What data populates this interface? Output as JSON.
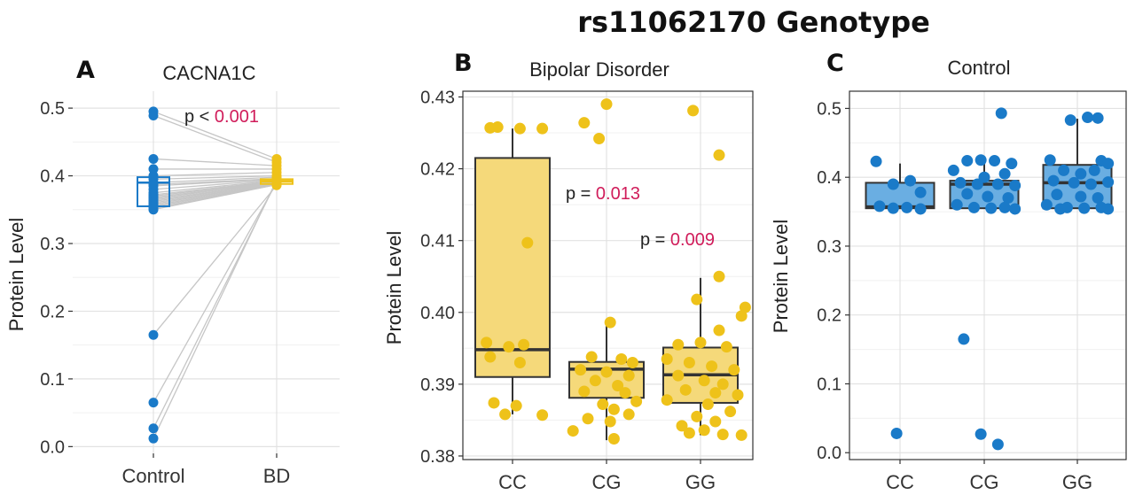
{
  "figure_title": "rs11062170 Genotype",
  "colors": {
    "bd": "#eec21a",
    "bd_fill": "#f5d97a",
    "control": "#1a7ac8",
    "control_fill": "#6aaee2",
    "pvalue": "#d01c5a",
    "pair_line": "#c6c6c6"
  },
  "chart_data": [
    {
      "id": "A",
      "type": "paired-scatter-box",
      "letter": "A",
      "title": "CACNA1C",
      "xlabel": "",
      "ylabel": "Protein Level",
      "categories": [
        "Control",
        "BD"
      ],
      "ylim": [
        -0.01,
        0.525
      ],
      "yticks": [
        0.0,
        0.1,
        0.2,
        0.3,
        0.4,
        0.5
      ],
      "ytick_labels": [
        "0.0",
        "0.1",
        "0.2",
        "0.3",
        "0.4",
        "0.5"
      ],
      "p_prefix": "p < ",
      "p_value": "0.001",
      "series": [
        {
          "name": "Control",
          "box": {
            "q1": 0.355,
            "median": 0.39,
            "q3": 0.398,
            "whisker_low": 0.355,
            "whisker_high": 0.398
          },
          "values": [
            0.495,
            0.489,
            0.425,
            0.41,
            0.4,
            0.395,
            0.39,
            0.387,
            0.385,
            0.38,
            0.375,
            0.372,
            0.37,
            0.368,
            0.366,
            0.364,
            0.362,
            0.36,
            0.358,
            0.356,
            0.354,
            0.352,
            0.35,
            0.165,
            0.065,
            0.027,
            0.012
          ]
        },
        {
          "name": "BD",
          "box": {
            "q1": 0.388,
            "median": 0.392,
            "q3": 0.395,
            "whisker_low": 0.386,
            "whisker_high": 0.397
          },
          "values": [
            0.425,
            0.42,
            0.415,
            0.41,
            0.405,
            0.4,
            0.398,
            0.396,
            0.395,
            0.394,
            0.393,
            0.392,
            0.392,
            0.391,
            0.391,
            0.39,
            0.39,
            0.389,
            0.389,
            0.388,
            0.388,
            0.387,
            0.387,
            0.386,
            0.39,
            0.392,
            0.394
          ]
        }
      ]
    },
    {
      "id": "B",
      "type": "box-jitter",
      "letter": "B",
      "title": "Bipolar Disorder",
      "xlabel": "",
      "ylabel": "Protein Level",
      "categories": [
        "CC",
        "CG",
        "GG"
      ],
      "ylim": [
        0.3795,
        0.4308
      ],
      "yticks": [
        0.38,
        0.39,
        0.4,
        0.41,
        0.42,
        0.43
      ],
      "ytick_labels": [
        "0.38",
        "0.39",
        "0.40",
        "0.41",
        "0.42",
        "0.43"
      ],
      "annotations": [
        {
          "prefix": "p = ",
          "value": "0.013"
        },
        {
          "prefix": "p = ",
          "value": "0.009"
        }
      ],
      "series": [
        {
          "name": "CC",
          "box": {
            "q1": 0.391,
            "median": 0.3948,
            "q3": 0.4215,
            "whisker_low": 0.3858,
            "whisker_high": 0.4256
          },
          "points": [
            [
              -0.3,
              0.4257
            ],
            [
              -0.2,
              0.4258
            ],
            [
              0.1,
              0.4256
            ],
            [
              0.4,
              0.4256
            ],
            [
              0.2,
              0.4097
            ],
            [
              -0.35,
              0.3958
            ],
            [
              -0.05,
              0.3952
            ],
            [
              0.15,
              0.3955
            ],
            [
              -0.3,
              0.3938
            ],
            [
              0.1,
              0.393
            ],
            [
              -0.25,
              0.3874
            ],
            [
              0.05,
              0.387
            ],
            [
              0.4,
              0.3857
            ],
            [
              -0.1,
              0.3858
            ]
          ]
        },
        {
          "name": "CG",
          "box": {
            "q1": 0.3881,
            "median": 0.3921,
            "q3": 0.3931,
            "whisker_low": 0.3822,
            "whisker_high": 0.3983
          },
          "points": [
            [
              0.0,
              0.429
            ],
            [
              -0.3,
              0.4264
            ],
            [
              -0.1,
              0.4242
            ],
            [
              0.05,
              0.3986
            ],
            [
              -0.45,
              0.3835
            ],
            [
              0.1,
              0.3824
            ],
            [
              -0.2,
              0.3938
            ],
            [
              0.2,
              0.3935
            ],
            [
              0.35,
              0.393
            ],
            [
              -0.35,
              0.392
            ],
            [
              0.0,
              0.3917
            ],
            [
              0.3,
              0.3912
            ],
            [
              -0.15,
              0.3905
            ],
            [
              0.15,
              0.3898
            ],
            [
              -0.3,
              0.389
            ],
            [
              0.25,
              0.3888
            ],
            [
              0.4,
              0.3876
            ],
            [
              -0.05,
              0.3872
            ],
            [
              0.1,
              0.3865
            ],
            [
              0.3,
              0.3858
            ],
            [
              -0.25,
              0.3852
            ],
            [
              0.05,
              0.3848
            ]
          ]
        },
        {
          "name": "GG",
          "box": {
            "q1": 0.3874,
            "median": 0.3913,
            "q3": 0.3951,
            "whisker_low": 0.3829,
            "whisker_high": 0.4048
          },
          "points": [
            [
              -0.1,
              0.4281
            ],
            [
              0.25,
              0.4219
            ],
            [
              0.25,
              0.405
            ],
            [
              0.6,
              0.4007
            ],
            [
              -0.05,
              0.4018
            ],
            [
              0.55,
              0.3995
            ],
            [
              0.25,
              0.3975
            ],
            [
              -0.3,
              0.3955
            ],
            [
              0.0,
              0.3958
            ],
            [
              0.35,
              0.3952
            ],
            [
              -0.45,
              0.3935
            ],
            [
              -0.15,
              0.393
            ],
            [
              0.15,
              0.3925
            ],
            [
              0.45,
              0.392
            ],
            [
              -0.3,
              0.3912
            ],
            [
              0.05,
              0.3905
            ],
            [
              0.3,
              0.39
            ],
            [
              -0.2,
              0.3892
            ],
            [
              0.2,
              0.3888
            ],
            [
              0.5,
              0.3885
            ],
            [
              -0.45,
              0.3878
            ],
            [
              0.1,
              0.3872
            ],
            [
              0.4,
              0.3862
            ],
            [
              -0.05,
              0.3855
            ],
            [
              0.2,
              0.3848
            ],
            [
              -0.25,
              0.3842
            ],
            [
              0.05,
              0.3836
            ],
            [
              0.3,
              0.383
            ],
            [
              0.55,
              0.3829
            ],
            [
              -0.15,
              0.3832
            ]
          ]
        }
      ]
    },
    {
      "id": "C",
      "type": "box-jitter",
      "letter": "C",
      "title": "Control",
      "xlabel": "",
      "ylabel": "Protein Level",
      "categories": [
        "CC",
        "CG",
        "GG"
      ],
      "ylim": [
        -0.01,
        0.525
      ],
      "yticks": [
        0.0,
        0.1,
        0.2,
        0.3,
        0.4,
        0.5
      ],
      "ytick_labels": [
        "0.0",
        "0.1",
        "0.2",
        "0.3",
        "0.4",
        "0.5"
      ],
      "series": [
        {
          "name": "CC",
          "box": {
            "q1": 0.355,
            "median": 0.357,
            "q3": 0.392,
            "whisker_low": 0.355,
            "whisker_high": 0.42
          },
          "points": [
            [
              -0.35,
              0.423
            ],
            [
              0.15,
              0.395
            ],
            [
              -0.1,
              0.39
            ],
            [
              0.3,
              0.378
            ],
            [
              -0.3,
              0.358
            ],
            [
              -0.1,
              0.355
            ],
            [
              0.1,
              0.356
            ],
            [
              0.3,
              0.354
            ],
            [
              -0.05,
              0.028
            ]
          ]
        },
        {
          "name": "CG",
          "box": {
            "q1": 0.355,
            "median": 0.39,
            "q3": 0.395,
            "whisker_low": 0.355,
            "whisker_high": 0.42
          },
          "points": [
            [
              0.25,
              0.493
            ],
            [
              -0.25,
              0.424
            ],
            [
              -0.05,
              0.425
            ],
            [
              0.15,
              0.424
            ],
            [
              0.4,
              0.42
            ],
            [
              -0.45,
              0.41
            ],
            [
              0.0,
              0.4
            ],
            [
              0.3,
              0.405
            ],
            [
              -0.35,
              0.392
            ],
            [
              -0.1,
              0.39
            ],
            [
              0.2,
              0.39
            ],
            [
              0.45,
              0.388
            ],
            [
              -0.25,
              0.376
            ],
            [
              0.05,
              0.372
            ],
            [
              0.35,
              0.37
            ],
            [
              -0.4,
              0.36
            ],
            [
              -0.15,
              0.356
            ],
            [
              0.1,
              0.355
            ],
            [
              0.3,
              0.356
            ],
            [
              0.45,
              0.354
            ],
            [
              -0.3,
              0.165
            ],
            [
              -0.05,
              0.027
            ],
            [
              0.2,
              0.012
            ]
          ]
        },
        {
          "name": "GG",
          "box": {
            "q1": 0.355,
            "median": 0.392,
            "q3": 0.418,
            "whisker_low": 0.355,
            "whisker_high": 0.485
          },
          "points": [
            [
              -0.1,
              0.483
            ],
            [
              0.15,
              0.487
            ],
            [
              0.3,
              0.486
            ],
            [
              -0.4,
              0.425
            ],
            [
              0.35,
              0.424
            ],
            [
              0.45,
              0.42
            ],
            [
              -0.2,
              0.41
            ],
            [
              0.05,
              0.405
            ],
            [
              0.25,
              0.41
            ],
            [
              -0.35,
              0.395
            ],
            [
              -0.05,
              0.392
            ],
            [
              0.2,
              0.39
            ],
            [
              0.45,
              0.393
            ],
            [
              -0.3,
              0.375
            ],
            [
              0.05,
              0.372
            ],
            [
              0.3,
              0.37
            ],
            [
              -0.45,
              0.36
            ],
            [
              -0.15,
              0.356
            ],
            [
              0.1,
              0.355
            ],
            [
              0.35,
              0.356
            ],
            [
              0.45,
              0.354
            ],
            [
              -0.25,
              0.354
            ]
          ]
        }
      ]
    }
  ]
}
